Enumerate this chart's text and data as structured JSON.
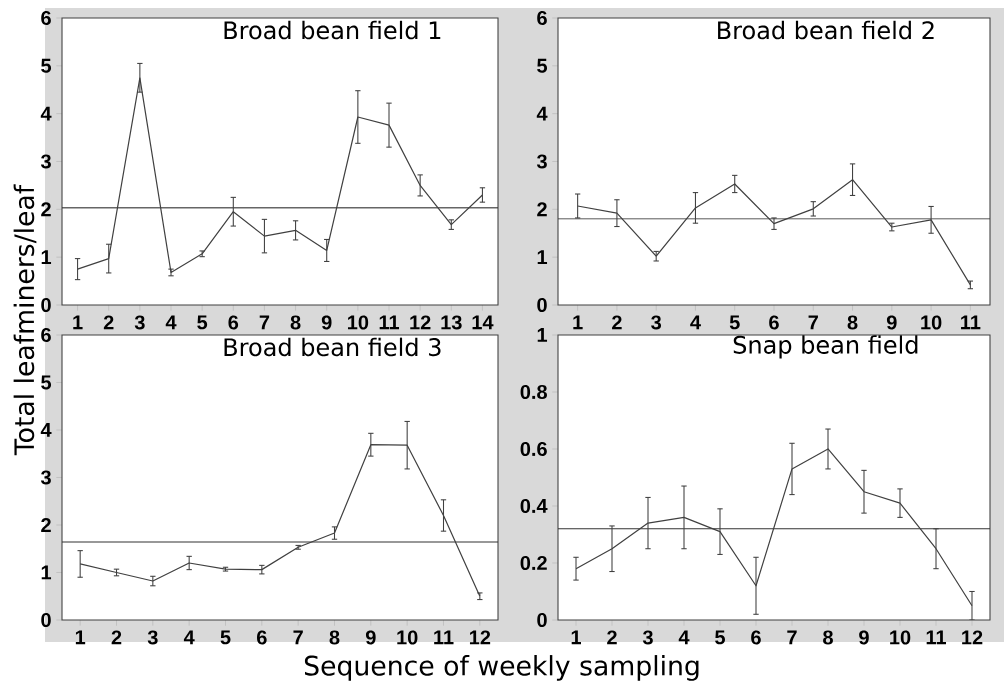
{
  "chart_data": [
    {
      "type": "line",
      "title": "Broad bean field 1",
      "ylabel": "Total leafminers/leaf",
      "x": [
        1,
        2,
        3,
        4,
        5,
        6,
        7,
        8,
        9,
        10,
        11,
        12,
        13,
        14
      ],
      "xlim": [
        0.5,
        14.5
      ],
      "xticks": [
        1,
        2,
        3,
        4,
        5,
        6,
        7,
        8,
        9,
        10,
        11,
        12,
        13,
        14
      ],
      "ylim": [
        0,
        6
      ],
      "yticks": [
        0,
        1,
        2,
        3,
        4,
        5,
        6
      ],
      "color": "#404040",
      "values": [
        0.75,
        0.97,
        4.75,
        0.68,
        1.07,
        1.95,
        1.44,
        1.56,
        1.14,
        3.93,
        3.76,
        2.5,
        1.68,
        2.3
      ],
      "errors": [
        0.22,
        0.3,
        0.3,
        0.07,
        0.06,
        0.3,
        0.35,
        0.2,
        0.23,
        0.55,
        0.46,
        0.22,
        0.1,
        0.15
      ],
      "ref_lines": [
        {
          "axis": "y",
          "value": 2.03
        }
      ]
    },
    {
      "type": "line",
      "title": "Broad bean field 2",
      "x": [
        1,
        2,
        3,
        4,
        5,
        6,
        7,
        8,
        9,
        10,
        11
      ],
      "xlim": [
        0.5,
        11.5
      ],
      "xticks": [
        1,
        2,
        3,
        4,
        5,
        6,
        7,
        8,
        9,
        10,
        11
      ],
      "ylim": [
        0,
        6
      ],
      "yticks": [
        0,
        1,
        2,
        3,
        4,
        5,
        6
      ],
      "color": "#404040",
      "values": [
        2.07,
        1.92,
        1.02,
        2.03,
        2.53,
        1.7,
        2.01,
        2.62,
        1.63,
        1.78,
        0.42
      ],
      "errors": [
        0.25,
        0.28,
        0.1,
        0.32,
        0.18,
        0.12,
        0.15,
        0.33,
        0.08,
        0.28,
        0.08
      ],
      "ref_lines": [
        {
          "axis": "y",
          "value": 1.8
        }
      ]
    },
    {
      "type": "line",
      "title": "Broad bean field 3",
      "xlabel": "Sequence of weekly sampling",
      "x": [
        1,
        2,
        3,
        4,
        5,
        6,
        7,
        8,
        9,
        10,
        11,
        12
      ],
      "xlim": [
        0.5,
        12.5
      ],
      "xticks": [
        1,
        2,
        3,
        4,
        5,
        6,
        7,
        8,
        9,
        10,
        11,
        12
      ],
      "ylim": [
        0,
        6
      ],
      "yticks": [
        0,
        1,
        2,
        3,
        4,
        5,
        6
      ],
      "color": "#404040",
      "values": [
        1.18,
        1.0,
        0.82,
        1.2,
        1.07,
        1.06,
        1.53,
        1.83,
        3.69,
        3.68,
        2.2,
        0.5
      ],
      "errors": [
        0.28,
        0.07,
        0.1,
        0.14,
        0.04,
        0.09,
        0.04,
        0.13,
        0.24,
        0.5,
        0.33,
        0.07
      ],
      "ref_lines": [
        {
          "axis": "y",
          "value": 1.64
        }
      ]
    },
    {
      "type": "line",
      "title": "Snap bean field",
      "x": [
        1,
        2,
        3,
        4,
        5,
        6,
        7,
        8,
        9,
        10,
        11,
        12
      ],
      "xlim": [
        0.5,
        12.5
      ],
      "xticks": [
        1,
        2,
        3,
        4,
        5,
        6,
        7,
        8,
        9,
        10,
        11,
        12
      ],
      "ylim": [
        0,
        1
      ],
      "yticks": [
        0,
        0.2,
        0.4,
        0.6,
        0.8,
        1
      ],
      "color": "#404040",
      "values": [
        0.18,
        0.25,
        0.34,
        0.36,
        0.31,
        0.12,
        0.53,
        0.6,
        0.45,
        0.41,
        0.25,
        0.05
      ],
      "errors": [
        0.04,
        0.08,
        0.09,
        0.11,
        0.08,
        0.1,
        0.09,
        0.07,
        0.075,
        0.05,
        0.07,
        0.05
      ],
      "ref_lines": [
        {
          "axis": "y",
          "value": 0.32
        }
      ]
    }
  ]
}
